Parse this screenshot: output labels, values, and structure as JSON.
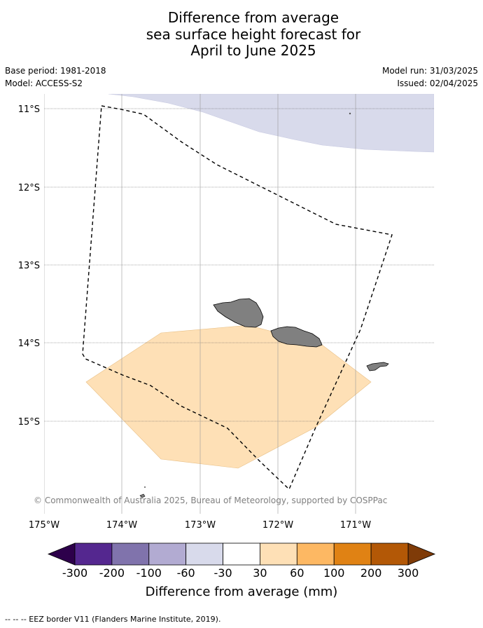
{
  "title_lines": [
    "Difference from average",
    "sea surface height forecast for",
    "April to June 2025"
  ],
  "base_period": "Base period: 1981-2018",
  "model": "Model: ACCESS-S2",
  "model_run": "Model run: 31/03/2025",
  "issued": "Issued: 02/04/2025",
  "map": {
    "lat_labels": [
      "11°S",
      "12°S",
      "13°S",
      "14°S",
      "15°S"
    ],
    "lon_labels": [
      "175°W",
      "174°W",
      "173°W",
      "172°W",
      "171°W"
    ],
    "extent": {
      "west": -175.0,
      "east": -170.0,
      "north": -10.8,
      "south": -16.2
    },
    "copyright": "© Commonwealth of Australia 2025, Bureau of Meteorology, supported by COSPPac"
  },
  "colorbar": {
    "label": "Difference from average (mm)",
    "ticks": [
      "-300",
      "-200",
      "-100",
      "-60",
      "-30",
      "30",
      "60",
      "100",
      "200",
      "300"
    ],
    "colors": [
      "#54278f",
      "#8073ac",
      "#b2abd2",
      "#d8daeb",
      "#ffffff",
      "#fee0b6",
      "#fdb863",
      "#e08214",
      "#b35806"
    ],
    "under_color": "#2d004b",
    "over_color": "#7f3b08"
  },
  "legend_note": "--  --  -- EEZ border V11 (Flanders Marine Institute, 2019)."
}
